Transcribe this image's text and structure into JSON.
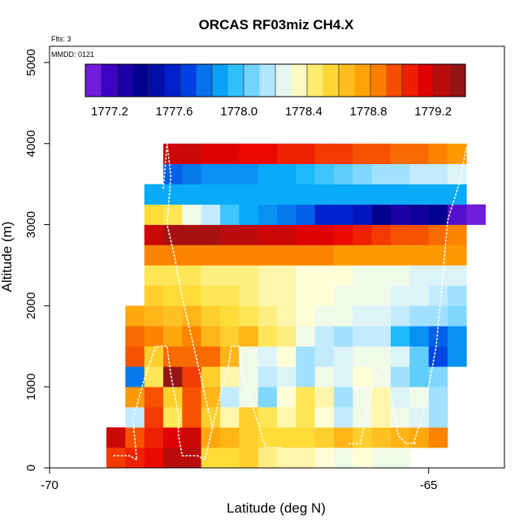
{
  "chart_data": {
    "type": "heatmap",
    "title": "ORCAS RF03miz CH4.X",
    "xlabel": "Latitude (deg N)",
    "ylabel": "Altitude (m)",
    "flights_label": "Flts: 3",
    "date_label": "MMDD: 0121",
    "xlim": [
      -70,
      -64
    ],
    "ylim": [
      0,
      5200
    ],
    "xticks": [
      -70,
      -65
    ],
    "yticks": [
      0,
      1000,
      2000,
      3000,
      4000,
      5000
    ],
    "colorbar": {
      "min": 1777.05,
      "max": 1779.4,
      "ticks": [
        "1777.2",
        "1777.6",
        "1778.0",
        "1778.4",
        "1778.8",
        "1779.2"
      ],
      "tick_values": [
        1777.2,
        1777.6,
        1778.0,
        1778.4,
        1778.8,
        1779.2
      ]
    },
    "bin_width_deg": 0.25,
    "bin_height_m": 250,
    "rows": [
      {
        "alt": 0,
        "lat_start": -69.25,
        "values": [
          1779.0,
          1779.05,
          1779.1,
          1779.25,
          1779.25,
          1778.55,
          1778.55,
          1778.6,
          1778.45,
          1778.4,
          1778.4,
          1778.35,
          1778.3,
          1778.35,
          1778.3,
          1778.3
        ]
      },
      {
        "alt": 250,
        "lat_start": -69.25,
        "values": [
          1779.2,
          1778.95,
          1779.05,
          1779.15,
          1779.2,
          1778.75,
          1778.7,
          1778.6,
          1778.55,
          1778.55,
          1778.55,
          1778.6,
          1778.7,
          1778.6,
          1778.65,
          1778.7,
          1778.75,
          1778.85
        ]
      },
      {
        "alt": 500,
        "lat_start": -69.0,
        "values": [
          1778.2,
          1779.0,
          1778.5,
          1778.95,
          1778.6,
          1778.4,
          1778.6,
          1778.5,
          1778.4,
          1778.5,
          1778.35,
          1778.2,
          1778.3,
          1778.4,
          1778.3,
          1778.25,
          1778.15
        ]
      },
      {
        "alt": 750,
        "lat_start": -69.0,
        "values": [
          1778.8,
          1778.95,
          1778.6,
          1778.95,
          1778.7,
          1778.2,
          1778.3,
          1778.1,
          1778.35,
          1778.5,
          1778.4,
          1778.15,
          1778.3,
          1778.4,
          1778.25,
          1778.3,
          1778.15
        ]
      },
      {
        "alt": 1000,
        "lat_start": -69.0,
        "values": [
          1777.8,
          1778.5,
          1779.35,
          1779.0,
          1778.6,
          1778.4,
          1778.3,
          1778.2,
          1778.25,
          1778.15,
          1778.3,
          1778.25,
          1778.35,
          1778.3,
          1778.15,
          1778.05,
          1778.1
        ]
      },
      {
        "alt": 1250,
        "lat_start": -69.0,
        "values": [
          1778.95,
          1778.6,
          1778.9,
          1778.9,
          1778.9,
          1778.7,
          1778.3,
          1778.25,
          1778.35,
          1778.15,
          1778.2,
          1778.25,
          1778.3,
          1778.3,
          1778.25,
          1778.05,
          1777.7,
          1777.85
        ]
      },
      {
        "alt": 1500,
        "lat_start": -69.0,
        "values": [
          1778.9,
          1778.85,
          1778.75,
          1778.85,
          1778.7,
          1778.6,
          1778.7,
          1778.5,
          1778.45,
          1778.3,
          1778.2,
          1778.15,
          1778.2,
          1778.2,
          1777.95,
          1777.85,
          1777.75,
          1777.85
        ]
      },
      {
        "alt": 1750,
        "lat_start": -69.0,
        "values": [
          1778.75,
          1778.7,
          1778.65,
          1778.7,
          1778.6,
          1778.55,
          1778.5,
          1778.45,
          1778.4,
          1778.35,
          1778.3,
          1778.3,
          1778.25,
          1778.25,
          1778.2,
          1778.15,
          1778.15,
          1778.1
        ]
      },
      {
        "alt": 2000,
        "lat_start": -68.75,
        "values": [
          1778.6,
          1778.55,
          1778.55,
          1778.5,
          1778.5,
          1778.45,
          1778.4,
          1778.4,
          1778.35,
          1778.35,
          1778.3,
          1778.3,
          1778.3,
          1778.25,
          1778.25,
          1778.2,
          1778.15
        ]
      },
      {
        "alt": 2250,
        "lat_start": -68.75,
        "values": [
          1778.5,
          1778.5,
          1778.5,
          1778.45,
          1778.45,
          1778.45,
          1778.4,
          1778.4,
          1778.35,
          1778.35,
          1778.35,
          1778.3,
          1778.3,
          1778.3,
          1778.25,
          1778.25,
          1778.25
        ]
      },
      {
        "alt": 2500,
        "lat_start": -68.75,
        "values": [
          1778.85,
          1778.85,
          1778.85,
          1778.85,
          1778.85,
          1778.85,
          1778.85,
          1778.85,
          1778.85,
          1778.85,
          1778.8,
          1778.8,
          1778.8,
          1778.8,
          1778.8,
          1778.8,
          1778.8
        ]
      },
      {
        "alt": 2750,
        "lat_start": -68.75,
        "values": [
          1779.2,
          1779.3,
          1779.3,
          1779.3,
          1779.25,
          1779.25,
          1779.2,
          1779.2,
          1779.15,
          1779.15,
          1779.1,
          1779.05,
          1779.0,
          1778.95,
          1778.95,
          1778.9,
          1778.85
        ]
      },
      {
        "alt": 3000,
        "lat_start": -68.75,
        "values": [
          1778.55,
          1778.5,
          1778.3,
          1778.2,
          1778.0,
          1777.9,
          1777.85,
          1777.8,
          1777.75,
          1777.6,
          1777.6,
          1777.55,
          1777.4,
          1777.3,
          1777.35,
          1777.4,
          1777.15,
          1777.1
        ]
      },
      {
        "alt": 3250,
        "lat_start": -68.75,
        "values": [
          1777.9,
          1777.9,
          1777.9,
          1777.9,
          1777.9,
          1777.9,
          1777.9,
          1777.9,
          1777.9,
          1777.9,
          1777.9,
          1777.9,
          1777.9,
          1777.9,
          1777.9,
          1777.9,
          1777.9
        ]
      },
      {
        "alt": 3500,
        "lat_start": -68.5,
        "values": [
          1777.75,
          1777.8,
          1777.85,
          1777.85,
          1777.85,
          1777.9,
          1777.9,
          1777.95,
          1778.0,
          1778.05,
          1778.1,
          1778.15,
          1778.15,
          1778.2,
          1778.2,
          1778.25
        ]
      },
      {
        "alt": 3750,
        "lat_start": -68.5,
        "values": [
          1779.2,
          1779.2,
          1779.15,
          1779.15,
          1779.1,
          1779.1,
          1779.05,
          1779.05,
          1779.0,
          1779.0,
          1778.95,
          1778.95,
          1778.9,
          1778.9,
          1778.85,
          1778.8
        ]
      }
    ],
    "flight_tracks": [
      {
        "name": "flight-1",
        "points": [
          [
            -69.15,
            150
          ],
          [
            -68.95,
            150
          ],
          [
            -68.85,
            100
          ],
          [
            -68.9,
            600
          ],
          [
            -68.75,
            1100
          ],
          [
            -68.6,
            1500
          ],
          [
            -68.45,
            1500
          ],
          [
            -68.4,
            1150
          ],
          [
            -68.35,
            900
          ],
          [
            -68.3,
            650
          ],
          [
            -68.3,
            400
          ],
          [
            -68.25,
            150
          ],
          [
            -68.05,
            150
          ],
          [
            -67.95,
            100
          ],
          [
            -67.85,
            500
          ],
          [
            -67.75,
            900
          ],
          [
            -67.65,
            1200
          ],
          [
            -67.6,
            1500
          ],
          [
            -67.5,
            1500
          ],
          [
            -67.45,
            1100
          ],
          [
            -67.3,
            700
          ],
          [
            -67.15,
            250
          ],
          [
            -67.05,
            250
          ],
          [
            -66.95,
            250
          ]
        ]
      },
      {
        "name": "flight-2",
        "points": [
          [
            -66.05,
            300
          ],
          [
            -65.9,
            300
          ],
          [
            -65.75,
            1000
          ],
          [
            -65.6,
            1250
          ],
          [
            -65.5,
            900
          ],
          [
            -65.4,
            400
          ],
          [
            -65.3,
            300
          ],
          [
            -65.15,
            300
          ]
        ]
      },
      {
        "name": "flight-3",
        "points": [
          [
            -68.5,
            3450
          ],
          [
            -68.45,
            4000
          ],
          [
            -68.4,
            3600
          ],
          [
            -68.45,
            3000
          ],
          [
            -68.35,
            2600
          ],
          [
            -68.25,
            2100
          ],
          [
            -68.15,
            1700
          ],
          [
            -68.05,
            1300
          ],
          [
            -67.95,
            900
          ],
          [
            -67.85,
            500
          ]
        ]
      },
      {
        "name": "flight-4",
        "points": [
          [
            -64.5,
            3950
          ],
          [
            -64.6,
            3500
          ],
          [
            -64.75,
            3050
          ],
          [
            -64.8,
            2500
          ],
          [
            -64.85,
            2000
          ],
          [
            -64.9,
            1500
          ],
          [
            -65.0,
            1000
          ],
          [
            -65.1,
            600
          ],
          [
            -65.2,
            300
          ]
        ]
      }
    ]
  }
}
